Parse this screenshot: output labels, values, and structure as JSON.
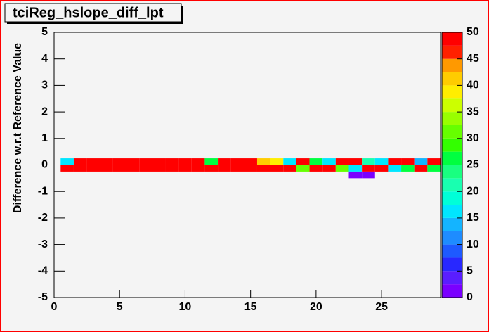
{
  "chart_data": {
    "type": "heatmap2d",
    "title": "tciReg_hslope_diff_lpt",
    "y_label": "Difference w.r.t Reference Value",
    "x": [
      1,
      2,
      3,
      4,
      5,
      6,
      7,
      8,
      9,
      10,
      11,
      12,
      13,
      14,
      15,
      16,
      17,
      18,
      19,
      20,
      21,
      22,
      23,
      24,
      25,
      26,
      27,
      28,
      29,
      1,
      2,
      3,
      4,
      5,
      6,
      7,
      8,
      9,
      10,
      11,
      12,
      13,
      14,
      15,
      16,
      17,
      18,
      19,
      20,
      21,
      22,
      23,
      24,
      25,
      26,
      27,
      28,
      29,
      23,
      24
    ],
    "y": [
      0.125,
      0.125,
      0.125,
      0.125,
      0.125,
      0.125,
      0.125,
      0.125,
      0.125,
      0.125,
      0.125,
      0.125,
      0.125,
      0.125,
      0.125,
      0.125,
      0.125,
      0.125,
      0.125,
      0.125,
      0.125,
      0.125,
      0.125,
      0.125,
      0.125,
      0.125,
      0.125,
      0.125,
      0.125,
      -0.125,
      -0.125,
      -0.125,
      -0.125,
      -0.125,
      -0.125,
      -0.125,
      -0.125,
      -0.125,
      -0.125,
      -0.125,
      -0.125,
      -0.125,
      -0.125,
      -0.125,
      -0.125,
      -0.125,
      -0.125,
      -0.125,
      -0.125,
      -0.125,
      -0.125,
      -0.125,
      -0.125,
      -0.125,
      -0.125,
      -0.125,
      -0.125,
      -0.125,
      -0.375,
      -0.375
    ],
    "values": [
      16,
      50,
      50,
      50,
      50,
      50,
      50,
      50,
      50,
      50,
      50,
      26,
      50,
      50,
      50,
      41,
      38,
      16,
      50,
      26,
      16,
      50,
      50,
      21,
      16,
      50,
      50,
      13,
      50,
      50,
      50,
      50,
      50,
      50,
      50,
      50,
      50,
      50,
      50,
      50,
      50,
      50,
      50,
      50,
      50,
      50,
      50,
      31,
      50,
      50,
      31,
      16,
      50,
      50,
      16,
      26,
      50,
      26,
      1,
      1
    ],
    "xlim": [
      0,
      29.5
    ],
    "xticks": [
      0,
      5,
      10,
      15,
      20,
      25
    ],
    "ylim": [
      -5,
      5
    ],
    "yticks": [
      -5,
      -4,
      -3,
      -2,
      -1,
      0,
      1,
      2,
      3,
      4,
      5
    ],
    "zlim": [
      0,
      50
    ],
    "zticks": [
      0,
      5,
      10,
      15,
      20,
      25,
      30,
      35,
      40,
      45,
      50
    ],
    "palette": [
      "#7a00ff",
      "#5a1eff",
      "#2828ff",
      "#1e5aff",
      "#1e8cff",
      "#14b4ff",
      "#00e6ff",
      "#00ffd8",
      "#19ffb0",
      "#19ff80",
      "#00ff40",
      "#33ff00",
      "#66ff00",
      "#99ff00",
      "#ccff00",
      "#ffee00",
      "#ffcc00",
      "#ff9900",
      "#ff2000",
      "#ff0000"
    ]
  }
}
